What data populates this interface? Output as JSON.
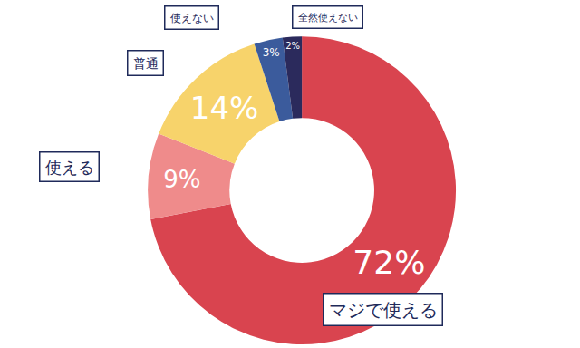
{
  "chart_data": {
    "type": "pie",
    "categories": [
      "マジで使える",
      "使える",
      "普通",
      "使えない",
      "全然使えない"
    ],
    "values": [
      72,
      9,
      14,
      3,
      2
    ],
    "value_labels": [
      "72%",
      "9%",
      "14%",
      "3%",
      "2%"
    ],
    "colors": [
      "#d9444f",
      "#ef8b8b",
      "#f7d36b",
      "#3b5b9c",
      "#2b2a5c"
    ],
    "data_labels": true
  }
}
